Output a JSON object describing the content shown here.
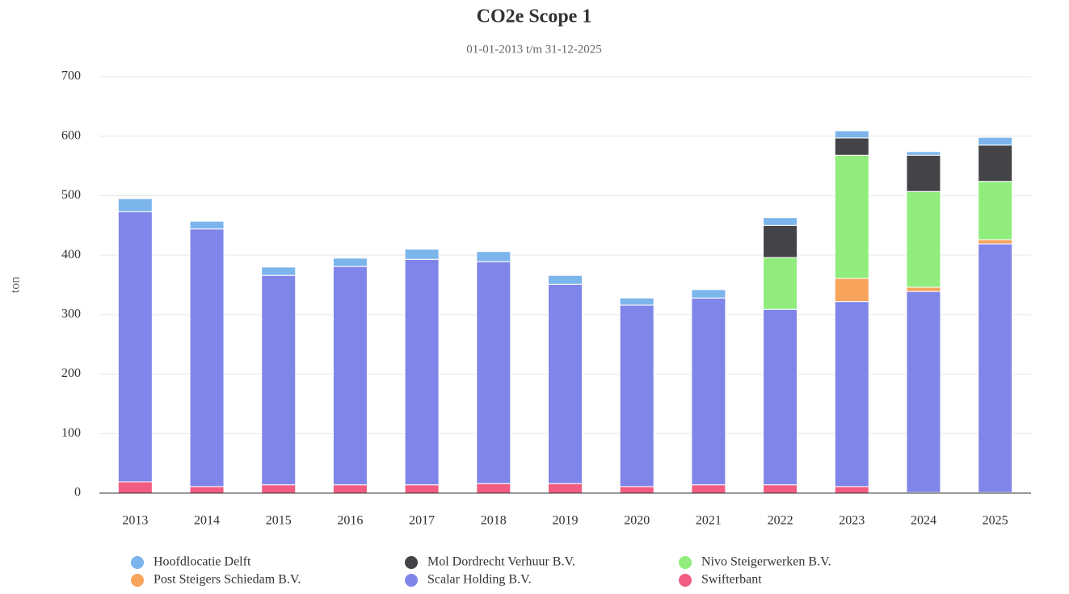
{
  "chart_data": {
    "type": "stacked_bar",
    "title": "CO2e Scope 1",
    "subtitle": "01-01-2013 t/m 31-12-2025",
    "y_label": "ton",
    "categories": [
      "2013",
      "2014",
      "2015",
      "2016",
      "2017",
      "2018",
      "2019",
      "2020",
      "2021",
      "2022",
      "2023",
      "2024",
      "2025"
    ],
    "series": [
      {
        "name": "Hoofdlocatie Delft",
        "color": "#7cb5ec",
        "values": [
          22,
          13,
          14,
          14,
          17,
          17,
          15,
          12,
          14,
          13,
          12,
          6,
          13
        ]
      },
      {
        "name": "Mol Dordrecht Verhuur B.V.",
        "color": "#434348",
        "values": [
          0,
          0,
          0,
          0,
          0,
          0,
          0,
          0,
          0,
          54,
          29,
          61,
          61
        ]
      },
      {
        "name": "Nivo Steigerwerken B.V.",
        "color": "#90ed7d",
        "values": [
          0,
          0,
          0,
          0,
          0,
          0,
          0,
          0,
          0,
          87,
          207,
          161,
          98
        ]
      },
      {
        "name": "Post Steigers Schiedam B.V.",
        "color": "#f7a35c",
        "values": [
          0,
          0,
          0,
          0,
          0,
          0,
          0,
          0,
          0,
          0,
          39,
          7,
          7
        ]
      },
      {
        "name": "Scalar Holding B.V.",
        "color": "#8085e9",
        "values": [
          454,
          433,
          352,
          367,
          379,
          373,
          335,
          305,
          314,
          295,
          311,
          338,
          418
        ]
      },
      {
        "name": "Swifterbant",
        "color": "#f15c80",
        "values": [
          19,
          11,
          14,
          14,
          14,
          16,
          16,
          11,
          14,
          14,
          11,
          1,
          1
        ]
      }
    ],
    "ylim": [
      0,
      700
    ],
    "yticks": [
      0,
      100,
      200,
      300,
      400,
      500,
      600,
      700
    ],
    "grid": true
  }
}
